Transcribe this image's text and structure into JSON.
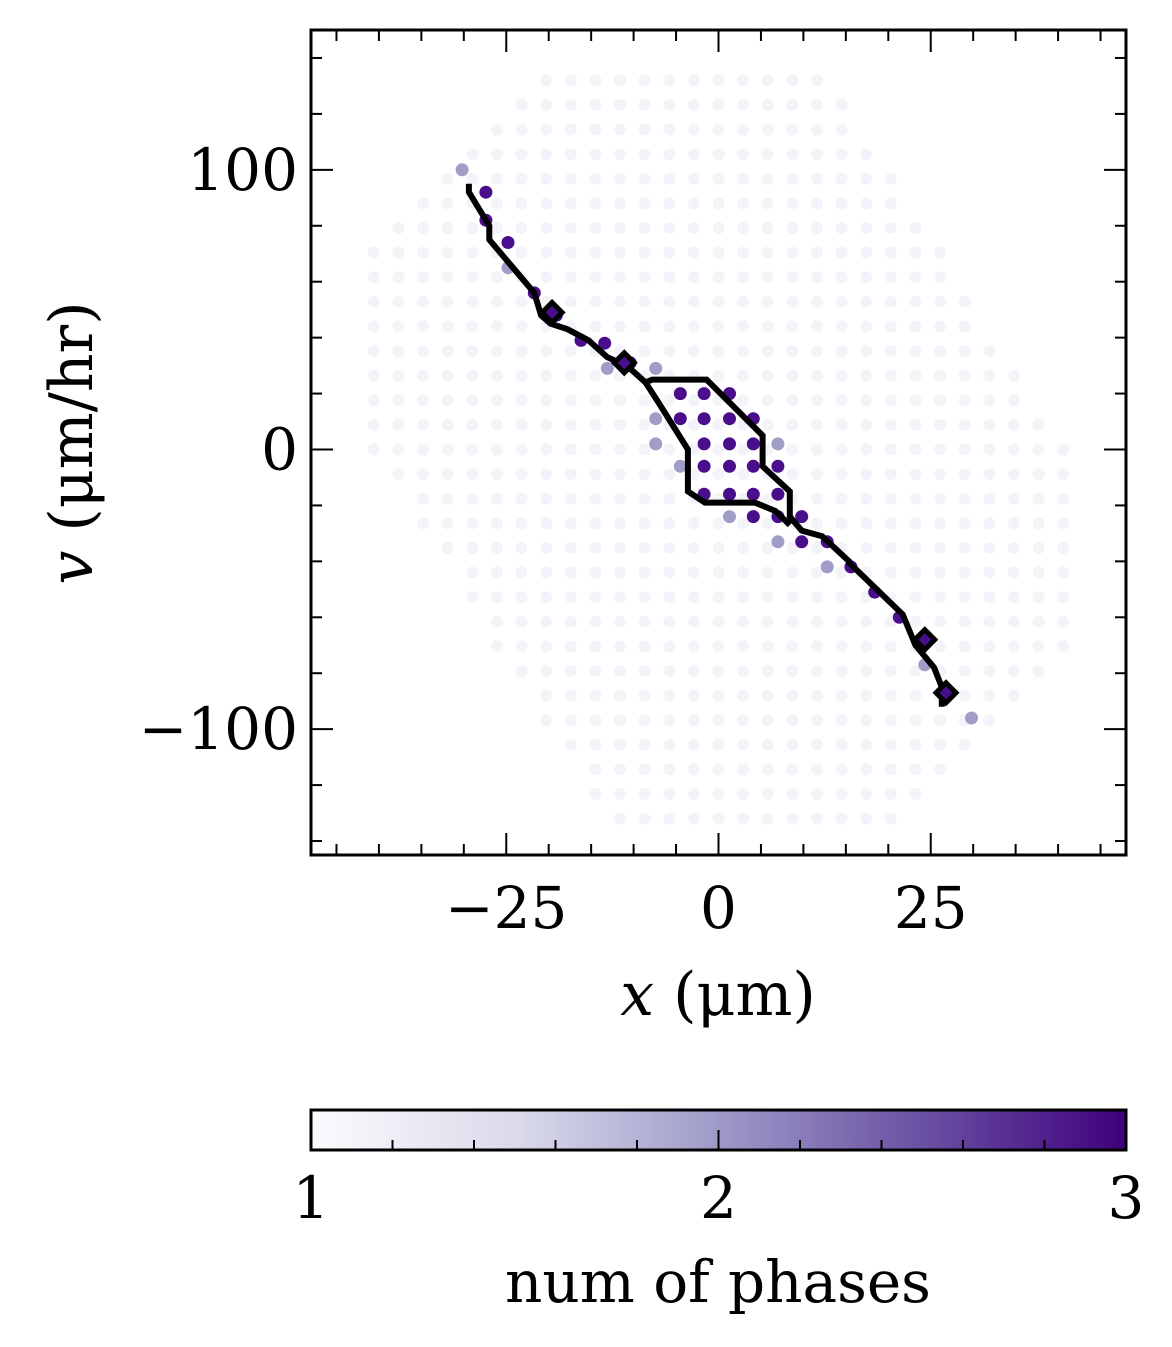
{
  "chart_data": {
    "type": "scatter",
    "xlabel_var": "x",
    "xlabel_unit": " (μm)",
    "ylabel_var": "v",
    "ylabel_unit": " (μm/hr)",
    "xlim": [
      -48,
      48
    ],
    "ylim": [
      -145,
      150
    ],
    "x_ticks": [
      {
        "value": -25,
        "label": "−25"
      },
      {
        "value": 0,
        "label": "0"
      },
      {
        "value": 25,
        "label": "25"
      }
    ],
    "y_ticks": [
      {
        "value": 100,
        "label": "100"
      },
      {
        "value": 0,
        "label": "0"
      },
      {
        "value": -100,
        "label": "−100"
      }
    ],
    "grid_points_phases_1": {
      "description_free": true,
      "x_spacing": 2.9,
      "v_spacing": 8.8
    },
    "points_phases_2": [
      [
        -30.2,
        100
      ],
      [
        -24.8,
        65
      ],
      [
        -13.1,
        29
      ],
      [
        -7.4,
        29
      ],
      [
        -7.4,
        11
      ],
      [
        -7.4,
        2
      ],
      [
        -4.5,
        -6
      ],
      [
        1.3,
        -24
      ],
      [
        7,
        -33
      ],
      [
        7,
        2
      ],
      [
        12.8,
        -42
      ],
      [
        24.3,
        -77
      ],
      [
        29.8,
        -96
      ]
    ],
    "points_phases_3": [
      [
        -27.4,
        92
      ],
      [
        -27.4,
        82
      ],
      [
        -24.8,
        74
      ],
      [
        -21.7,
        56
      ],
      [
        -19.1,
        48
      ],
      [
        -16.2,
        39
      ],
      [
        -13.4,
        38
      ],
      [
        -10.4,
        31
      ],
      [
        -4.5,
        20
      ],
      [
        -1.7,
        20
      ],
      [
        1.3,
        20
      ],
      [
        -4.5,
        11
      ],
      [
        -1.7,
        11
      ],
      [
        1.3,
        11
      ],
      [
        4.1,
        11
      ],
      [
        -1.7,
        2
      ],
      [
        1.3,
        2
      ],
      [
        4.1,
        2
      ],
      [
        -1.7,
        -6
      ],
      [
        1.3,
        -6
      ],
      [
        4.1,
        -6
      ],
      [
        7,
        -6
      ],
      [
        -1.7,
        -16
      ],
      [
        1.3,
        -16
      ],
      [
        4.1,
        -16
      ],
      [
        7,
        -16
      ],
      [
        4.1,
        -24
      ],
      [
        7,
        -24
      ],
      [
        9.8,
        -24
      ],
      [
        9.8,
        -33
      ],
      [
        12.8,
        -33
      ],
      [
        15.6,
        -42
      ],
      [
        18.4,
        -51
      ],
      [
        21.3,
        -60
      ],
      [
        24.3,
        -68
      ],
      [
        26.8,
        -87
      ]
    ],
    "boundary_line": [
      [
        -29.4,
        95
      ],
      [
        -29.4,
        92
      ],
      [
        -27,
        80
      ],
      [
        -27,
        75
      ],
      [
        -21.7,
        56
      ],
      [
        -20.9,
        48
      ],
      [
        -19.8,
        45
      ],
      [
        -17.8,
        43
      ],
      [
        -15.3,
        39
      ],
      [
        -13.1,
        33
      ],
      [
        -10.8,
        30
      ],
      [
        -8.6,
        24
      ],
      [
        -7.8,
        25
      ],
      [
        -1.4,
        25
      ],
      [
        5.2,
        5
      ],
      [
        5.2,
        -6
      ],
      [
        8.4,
        -15
      ],
      [
        8.4,
        -24
      ],
      [
        9.8,
        -29
      ],
      [
        12.2,
        -31
      ],
      [
        15.4,
        -40
      ],
      [
        15.4,
        -40.5
      ],
      [
        21.7,
        -59
      ],
      [
        23.2,
        -70
      ],
      [
        25.4,
        -78
      ],
      [
        26.3,
        -85
      ],
      [
        26.3,
        -92
      ]
    ],
    "boundary_loop": [
      [
        -8.6,
        24
      ],
      [
        -6.9,
        16
      ],
      [
        -3.6,
        0
      ],
      [
        -3.6,
        -15
      ],
      [
        -1.6,
        -19
      ],
      [
        4.3,
        -19
      ],
      [
        6.7,
        -22
      ],
      [
        8.4,
        -27
      ]
    ],
    "diamond_markers": [
      [
        -19.6,
        49
      ],
      [
        -11.1,
        31
      ],
      [
        24.3,
        -68
      ],
      [
        26.8,
        -87
      ]
    ],
    "colorbar": {
      "label": "num of phases",
      "min": 1,
      "max": 3,
      "ticks": [
        {
          "value": 1,
          "label": "1"
        },
        {
          "value": 2,
          "label": "2"
        },
        {
          "value": 3,
          "label": "3"
        }
      ],
      "colors": [
        "#fcfbfd",
        "#dadaeb",
        "#9e9ac8",
        "#6a51a3",
        "#3f007d"
      ]
    }
  }
}
